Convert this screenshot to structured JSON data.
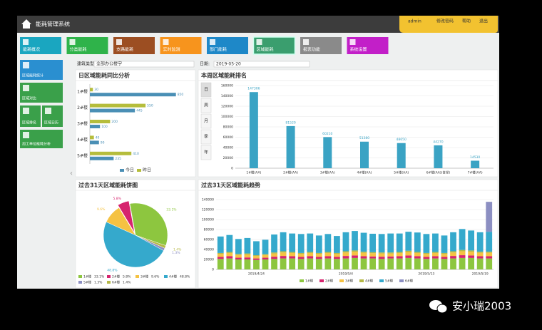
{
  "app": {
    "title": "能耗管理系统",
    "user": "admin",
    "links": [
      "修改密码",
      "帮助",
      "退出"
    ]
  },
  "nav": [
    "能耗概况",
    "分类能耗",
    "支路能耗",
    "实时监测",
    "部门能耗",
    "区域能耗",
    "报表功能",
    "系统设置"
  ],
  "sidebar": [
    "区域能耗统计",
    "区域对比",
    "区域排名",
    "区域日历",
    "加工单位能耗分析"
  ],
  "filters": {
    "label1": "建筑类型:",
    "value1": "全部办公楼宇",
    "label2": "日期:",
    "value2": "2019-05-20"
  },
  "watermark": "安小瑞2003",
  "chart_data": [
    {
      "type": "bar",
      "orientation": "horizontal",
      "title": "日区域能耗同比分析",
      "categories": [
        "1#楼",
        "2#楼",
        "3#楼",
        "4#楼",
        "5#楼"
      ],
      "series": [
        {
          "name": "今日",
          "color": "#4a8fb5",
          "values": [
            850,
            445,
            100,
            90,
            235
          ]
        },
        {
          "name": "昨日",
          "color": "#b5bd3c",
          "values": [
            30,
            550,
            200,
            40,
            410
          ]
        }
      ],
      "xlim": [
        0,
        1000
      ]
    },
    {
      "type": "bar",
      "title": "本周区域能耗排名",
      "period_tabs": [
        "日",
        "周",
        "月",
        "季",
        "年"
      ],
      "categories": [
        "1#楼(AA)",
        "2#楼(AA)",
        "3#楼(AA)",
        "4#楼(AA)",
        "5#楼(AA)",
        "6#楼(AA)(食堂)",
        "7#楼(AA)"
      ],
      "values": [
        147306,
        81520,
        60210,
        51380,
        48650,
        44270,
        14530
      ],
      "color": "#3aa3c4",
      "ylim": [
        0,
        160000
      ],
      "yticks": [
        0,
        20000,
        40000,
        60000,
        80000,
        100000,
        120000,
        140000,
        160000
      ],
      "grid": true
    },
    {
      "type": "pie",
      "title": "过去31天区域能耗饼图",
      "categories": [
        "1#楼",
        "2#楼",
        "3#楼",
        "4#楼",
        "5#楼",
        "6#楼"
      ],
      "values": [
        33.1,
        5.8,
        9.6,
        48.8,
        1.3,
        1.4
      ],
      "value_labels": [
        "33.1%",
        "5.8%",
        "9.6%",
        "48.8%",
        "1.3%",
        "1.4%"
      ],
      "colors": [
        "#8dc63f",
        "#d6246e",
        "#f5c242",
        "#35a9cc",
        "#8c8fc2",
        "#b5b846"
      ]
    },
    {
      "type": "stacked_bar",
      "title": "过去31天区域能耗趋势",
      "categories": [
        null,
        null,
        null,
        null,
        "2019/4/24",
        null,
        null,
        null,
        null,
        null,
        null,
        null,
        null,
        null,
        "2019/5/4",
        null,
        null,
        null,
        null,
        null,
        null,
        null,
        null,
        "2019/5/13",
        null,
        null,
        null,
        null,
        null,
        "2019/5/19",
        null
      ],
      "series": [
        {
          "name": "1#楼",
          "color": "#8dc63f",
          "values": [
            21000,
            22000,
            20000,
            20000,
            19000,
            20000,
            21000,
            22000,
            22000,
            21000,
            22000,
            21000,
            22000,
            21000,
            22000,
            23000,
            22000,
            22000,
            21000,
            22000,
            22000,
            23000,
            22000,
            21000,
            22000,
            21000,
            22000,
            23000,
            23000,
            22000,
            22000
          ]
        },
        {
          "name": "2#楼",
          "color": "#d6246e",
          "values": [
            4000,
            4500,
            3500,
            4000,
            3000,
            3500,
            4500,
            5000,
            4500,
            4000,
            4500,
            4000,
            4500,
            4000,
            5000,
            5000,
            4500,
            4000,
            4500,
            4000,
            4500,
            5000,
            4500,
            4000,
            4500,
            4000,
            5000,
            5500,
            5000,
            4500,
            4500
          ]
        },
        {
          "name": "3#楼",
          "color": "#f5c242",
          "values": [
            6000,
            6500,
            5500,
            6000,
            5000,
            5500,
            6500,
            7000,
            6500,
            6000,
            6500,
            6000,
            6500,
            6000,
            7000,
            7500,
            7000,
            6500,
            6500,
            6000,
            6500,
            7000,
            6500,
            6000,
            6500,
            6000,
            7000,
            8000,
            7500,
            7000,
            7000
          ]
        },
        {
          "name": "4#楼",
          "color": "#b5b846",
          "values": [
            2000,
            2000,
            2000,
            2000,
            1500,
            1500,
            2000,
            2500,
            2000,
            2000,
            2000,
            2000,
            2000,
            2000,
            2500,
            2500,
            2000,
            2000,
            2000,
            2000,
            2000,
            2500,
            2000,
            2000,
            2000,
            2000,
            2500,
            2500,
            2500,
            2000,
            2000
          ]
        },
        {
          "name": "5#楼",
          "color": "#35a9cc",
          "values": [
            33000,
            34000,
            30000,
            31000,
            28000,
            29000,
            36000,
            38000,
            37000,
            38000,
            37000,
            35000,
            36000,
            34000,
            38000,
            39000,
            38000,
            37000,
            37000,
            38000,
            37000,
            38000,
            39000,
            38000,
            37000,
            35000,
            38000,
            42000,
            40000,
            39000,
            40000
          ]
        },
        {
          "name": "6#楼",
          "color": "#8c8fc2",
          "values": [
            0,
            0,
            0,
            0,
            0,
            0,
            0,
            0,
            0,
            0,
            0,
            0,
            0,
            0,
            0,
            0,
            0,
            0,
            0,
            0,
            0,
            0,
            0,
            0,
            0,
            0,
            0,
            0,
            0,
            0,
            60000
          ]
        }
      ],
      "ylim": [
        0,
        140000
      ],
      "yticks": [
        0,
        20000,
        40000,
        60000,
        80000,
        100000,
        120000,
        140000
      ],
      "grid": true
    }
  ]
}
